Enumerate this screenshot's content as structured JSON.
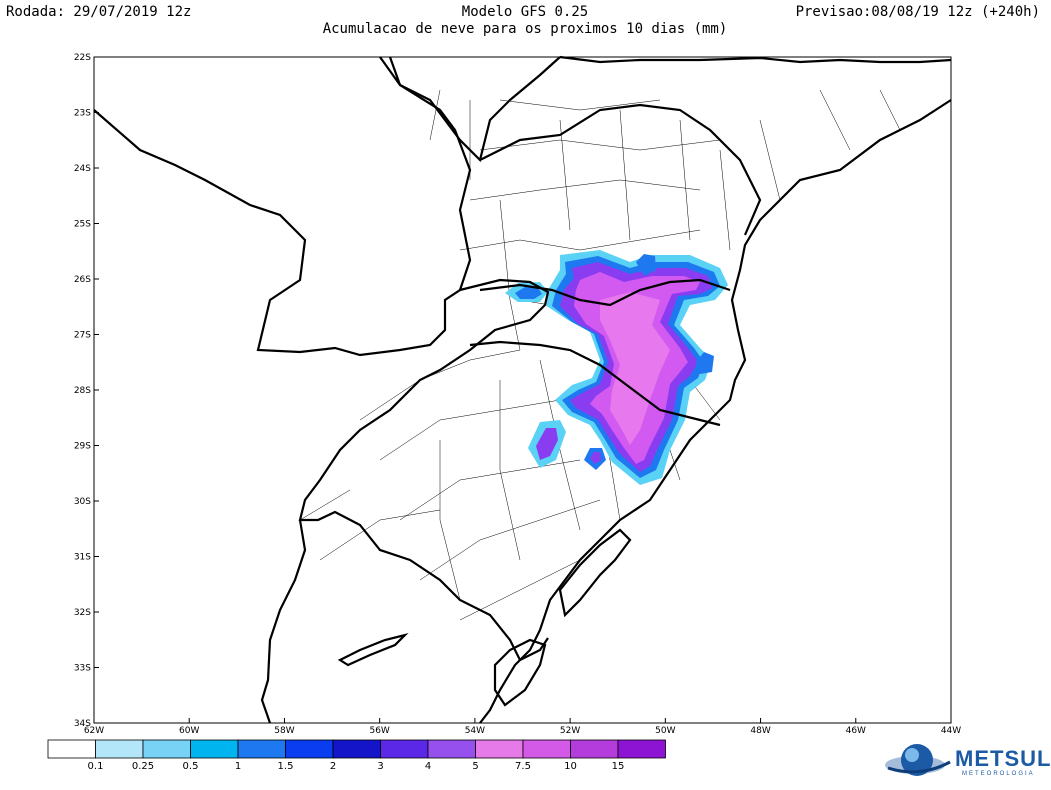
{
  "header": {
    "run": "Rodada: 29/07/2019 12z",
    "model": "Modelo GFS 0.25",
    "subtitle": "Acumulacao de neve para os proximos 10 dias (mm)",
    "forecast": "Previsao:08/08/19 12z (+240h)"
  },
  "map": {
    "lat_labels": [
      "22S",
      "23S",
      "24S",
      "25S",
      "26S",
      "27S",
      "28S",
      "29S",
      "30S",
      "31S",
      "32S",
      "33S",
      "34S"
    ],
    "lon_labels": [
      "62W",
      "60W",
      "58W",
      "56W",
      "54W",
      "52W",
      "50W",
      "48W",
      "46W",
      "44W"
    ],
    "lat_values": [
      -22,
      -23,
      -24,
      -25,
      -26,
      -27,
      -28,
      -29,
      -30,
      -31,
      -32,
      -33,
      -34
    ],
    "lon_values": [
      -62,
      -60,
      -58,
      -56,
      -54,
      -52,
      -50,
      -48,
      -46,
      -44
    ],
    "snow_colors": {
      "light_blue": "#5ad2f5",
      "blue": "#1e78f0",
      "dark_blue": "#1414d2",
      "purple": "#8a3cf0",
      "magenta": "#d25af0",
      "pink": "#e878ee"
    }
  },
  "legend": {
    "labels": [
      "0.1",
      "0.25",
      "0.5",
      "1",
      "1.5",
      "2",
      "3",
      "4",
      "5",
      "7.5",
      "10",
      "15"
    ],
    "colors": [
      "#ffffff",
      "#b4e6fa",
      "#78d2f5",
      "#00b4f0",
      "#1e78f0",
      "#0a3cf0",
      "#1414c8",
      "#5a28e6",
      "#9650ee",
      "#e67ae8",
      "#d25ae6",
      "#b43cdc",
      "#8c14d2"
    ]
  },
  "branding": {
    "name": "METSUL",
    "tagline": "METEOROLOGIA"
  }
}
